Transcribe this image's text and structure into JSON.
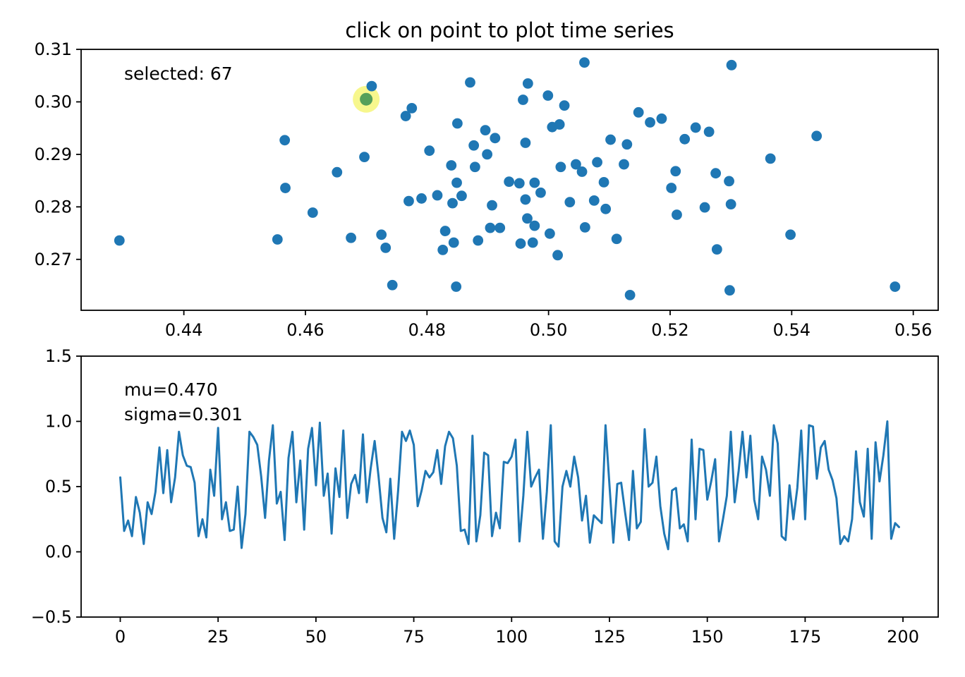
{
  "figure": {
    "background": "#ffffff"
  },
  "colors": {
    "point": "#1f77b4",
    "line": "#1f77b4",
    "selected_center": "#55a05a",
    "selected_halo": "#f4f45c",
    "axis": "#000000",
    "text": "#000000"
  },
  "chart_data": [
    {
      "type": "scatter",
      "title": "click on point to plot time series",
      "annotation": "selected: 67",
      "selected_index_label": "67",
      "xlim": [
        0.4231,
        0.5641
      ],
      "ylim": [
        0.2603,
        0.31
      ],
      "xticks": [
        0.44,
        0.46,
        0.48,
        0.5,
        0.52,
        0.54,
        0.56
      ],
      "xtick_labels": [
        "0.44",
        "0.46",
        "0.48",
        "0.50",
        "0.52",
        "0.54",
        "0.56"
      ],
      "yticks": [
        0.27,
        0.28,
        0.29,
        0.3,
        0.31
      ],
      "ytick_labels": [
        "0.27",
        "0.28",
        "0.29",
        "0.30",
        "0.31"
      ],
      "selected_point": {
        "x": 0.47,
        "y": 0.3005
      },
      "points": [
        [
          0.4709,
          0.303
        ],
        [
          0.4566,
          0.2927
        ],
        [
          0.4697,
          0.2895
        ],
        [
          0.4652,
          0.2866
        ],
        [
          0.5059,
          0.3075
        ],
        [
          0.4871,
          0.3037
        ],
        [
          0.4966,
          0.3035
        ],
        [
          0.4958,
          0.3004
        ],
        [
          0.4999,
          0.3012
        ],
        [
          0.5026,
          0.2993
        ],
        [
          0.4775,
          0.2988
        ],
        [
          0.4765,
          0.2973
        ],
        [
          0.5148,
          0.298
        ],
        [
          0.5167,
          0.2961
        ],
        [
          0.485,
          0.2959
        ],
        [
          0.4896,
          0.2946
        ],
        [
          0.4912,
          0.2931
        ],
        [
          0.4877,
          0.2917
        ],
        [
          0.4962,
          0.2922
        ],
        [
          0.5006,
          0.2952
        ],
        [
          0.5018,
          0.2957
        ],
        [
          0.4804,
          0.2907
        ],
        [
          0.5102,
          0.2928
        ],
        [
          0.5129,
          0.2919
        ],
        [
          0.4899,
          0.29
        ],
        [
          0.484,
          0.2879
        ],
        [
          0.4879,
          0.2876
        ],
        [
          0.502,
          0.2876
        ],
        [
          0.5045,
          0.2881
        ],
        [
          0.5055,
          0.2867
        ],
        [
          0.508,
          0.2885
        ],
        [
          0.5124,
          0.2881
        ],
        [
          0.5301,
          0.307
        ],
        [
          0.5186,
          0.2968
        ],
        [
          0.5242,
          0.2951
        ],
        [
          0.5264,
          0.2943
        ],
        [
          0.5224,
          0.2929
        ],
        [
          0.5441,
          0.2935
        ],
        [
          0.5365,
          0.2892
        ],
        [
          0.5209,
          0.2868
        ],
        [
          0.5275,
          0.2864
        ],
        [
          0.5297,
          0.2849
        ],
        [
          0.4294,
          0.2736
        ],
        [
          0.4554,
          0.2738
        ],
        [
          0.4567,
          0.2836
        ],
        [
          0.4612,
          0.2789
        ],
        [
          0.4675,
          0.2741
        ],
        [
          0.4849,
          0.2846
        ],
        [
          0.4935,
          0.2848
        ],
        [
          0.4952,
          0.2845
        ],
        [
          0.4977,
          0.2846
        ],
        [
          0.5091,
          0.2847
        ],
        [
          0.477,
          0.2811
        ],
        [
          0.4791,
          0.2816
        ],
        [
          0.4817,
          0.2822
        ],
        [
          0.4842,
          0.2807
        ],
        [
          0.4857,
          0.2821
        ],
        [
          0.4907,
          0.2803
        ],
        [
          0.4962,
          0.2814
        ],
        [
          0.4987,
          0.2827
        ],
        [
          0.5035,
          0.2809
        ],
        [
          0.5075,
          0.2812
        ],
        [
          0.5094,
          0.2796
        ],
        [
          0.4725,
          0.2747
        ],
        [
          0.4732,
          0.2722
        ],
        [
          0.483,
          0.2754
        ],
        [
          0.4826,
          0.2718
        ],
        [
          0.4844,
          0.2732
        ],
        [
          0.4884,
          0.2736
        ],
        [
          0.4904,
          0.276
        ],
        [
          0.492,
          0.276
        ],
        [
          0.4965,
          0.2778
        ],
        [
          0.4977,
          0.2764
        ],
        [
          0.4954,
          0.273
        ],
        [
          0.4974,
          0.2732
        ],
        [
          0.5002,
          0.2749
        ],
        [
          0.5015,
          0.2708
        ],
        [
          0.506,
          0.2761
        ],
        [
          0.5112,
          0.2739
        ],
        [
          0.4743,
          0.2651
        ],
        [
          0.4848,
          0.2648
        ],
        [
          0.5134,
          0.2632
        ],
        [
          0.5202,
          0.2836
        ],
        [
          0.5211,
          0.2785
        ],
        [
          0.5257,
          0.2799
        ],
        [
          0.53,
          0.2805
        ],
        [
          0.5398,
          0.2747
        ],
        [
          0.5277,
          0.2719
        ],
        [
          0.5298,
          0.2641
        ],
        [
          0.557,
          0.2648
        ]
      ]
    },
    {
      "type": "line",
      "annotations": {
        "mu": "mu=0.470",
        "sigma": "sigma=0.301"
      },
      "xlim": [
        -10,
        209
      ],
      "ylim": [
        -0.5,
        1.5
      ],
      "x_start": 0,
      "xticks": [
        0,
        25,
        50,
        75,
        100,
        125,
        150,
        175,
        200
      ],
      "xtick_labels": [
        "0",
        "25",
        "50",
        "75",
        "100",
        "125",
        "150",
        "175",
        "200"
      ],
      "yticks": [
        -0.5,
        0.0,
        0.5,
        1.0,
        1.5
      ],
      "ytick_labels": [
        "−0.5",
        "0.0",
        "0.5",
        "1.0",
        "1.5"
      ],
      "values": [
        0.57,
        0.16,
        0.24,
        0.12,
        0.42,
        0.3,
        0.06,
        0.38,
        0.29,
        0.46,
        0.8,
        0.45,
        0.78,
        0.38,
        0.57,
        0.92,
        0.74,
        0.66,
        0.65,
        0.53,
        0.12,
        0.25,
        0.11,
        0.63,
        0.43,
        0.95,
        0.25,
        0.38,
        0.16,
        0.17,
        0.5,
        0.03,
        0.29,
        0.92,
        0.88,
        0.82,
        0.58,
        0.26,
        0.7,
        0.97,
        0.37,
        0.46,
        0.09,
        0.72,
        0.92,
        0.38,
        0.7,
        0.17,
        0.79,
        0.95,
        0.51,
        0.99,
        0.43,
        0.6,
        0.14,
        0.64,
        0.42,
        0.93,
        0.26,
        0.52,
        0.59,
        0.45,
        0.9,
        0.38,
        0.64,
        0.85,
        0.58,
        0.26,
        0.15,
        0.56,
        0.1,
        0.47,
        0.92,
        0.85,
        0.93,
        0.82,
        0.35,
        0.47,
        0.62,
        0.57,
        0.61,
        0.78,
        0.52,
        0.81,
        0.92,
        0.87,
        0.66,
        0.16,
        0.17,
        0.06,
        0.89,
        0.08,
        0.28,
        0.76,
        0.74,
        0.12,
        0.3,
        0.18,
        0.69,
        0.68,
        0.73,
        0.86,
        0.08,
        0.43,
        0.92,
        0.5,
        0.57,
        0.63,
        0.1,
        0.46,
        0.97,
        0.08,
        0.04,
        0.5,
        0.62,
        0.5,
        0.73,
        0.57,
        0.24,
        0.43,
        0.07,
        0.28,
        0.25,
        0.22,
        0.97,
        0.51,
        0.07,
        0.52,
        0.53,
        0.3,
        0.09,
        0.62,
        0.18,
        0.23,
        0.94,
        0.5,
        0.53,
        0.73,
        0.35,
        0.14,
        0.02,
        0.47,
        0.49,
        0.18,
        0.21,
        0.08,
        0.86,
        0.25,
        0.79,
        0.78,
        0.4,
        0.54,
        0.71,
        0.08,
        0.25,
        0.43,
        0.92,
        0.38,
        0.62,
        0.92,
        0.57,
        0.89,
        0.4,
        0.25,
        0.73,
        0.63,
        0.43,
        0.97,
        0.83,
        0.12,
        0.09,
        0.51,
        0.25,
        0.49,
        0.93,
        0.25,
        0.97,
        0.96,
        0.56,
        0.8,
        0.85,
        0.63,
        0.55,
        0.41,
        0.06,
        0.12,
        0.08,
        0.25,
        0.77,
        0.38,
        0.27,
        0.79,
        0.1,
        0.84,
        0.54,
        0.74,
        1.0,
        0.1,
        0.22,
        0.19
      ]
    }
  ]
}
